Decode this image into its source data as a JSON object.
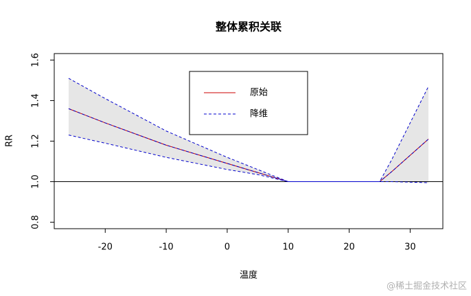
{
  "chart_data": {
    "type": "line",
    "title": "整体累积关联",
    "x_label": "温度",
    "y_label": "RR",
    "x": [
      -26,
      -20,
      -10,
      0,
      5,
      10,
      25,
      27,
      33
    ],
    "series": [
      {
        "name": "原始",
        "color": "#cc0000",
        "dash": false,
        "values": [
          1.36,
          1.29,
          1.18,
          1.09,
          1.045,
          1.0,
          1.0,
          1.05,
          1.21
        ]
      },
      {
        "name": "降维",
        "color": "#0000cc",
        "dash": true,
        "values": [
          1.36,
          1.29,
          1.18,
          1.09,
          1.045,
          1.0,
          1.0,
          1.05,
          1.21
        ],
        "lower": [
          1.23,
          1.19,
          1.12,
          1.06,
          1.035,
          1.0,
          1.0,
          1.0,
          0.995
        ],
        "upper": [
          1.51,
          1.41,
          1.25,
          1.12,
          1.06,
          1.0,
          1.0,
          1.11,
          1.47
        ]
      }
    ],
    "band_color": "#e6e6e6",
    "reference_line": 1.0,
    "xlim": [
      -28.36,
      35.36
    ],
    "xticks": [
      -20,
      -10,
      0,
      10,
      20,
      30
    ],
    "ylim": [
      0.768,
      1.632
    ],
    "yticks": [
      0.8,
      1.0,
      1.2,
      1.4,
      1.6
    ],
    "legend_position": "top-center",
    "watermark": "@稀土掘金技术社区"
  }
}
